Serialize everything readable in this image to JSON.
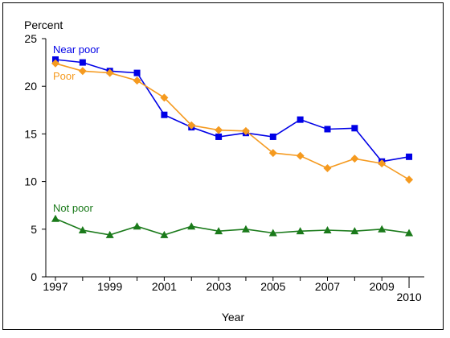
{
  "chart_data": {
    "type": "line",
    "title": "",
    "ylabel": "Percent",
    "xlabel": "Year",
    "ylim": [
      0,
      25
    ],
    "yticks": [
      0,
      5,
      10,
      15,
      20,
      25
    ],
    "x": [
      1997,
      1998,
      1999,
      2000,
      2001,
      2002,
      2003,
      2004,
      2005,
      2006,
      2007,
      2008,
      2009,
      2010
    ],
    "xtick_labels": [
      "1997",
      "1999",
      "2001",
      "2003",
      "2005",
      "2007",
      "2009",
      "2010"
    ],
    "grid": false,
    "series": [
      {
        "name": "Near poor",
        "color": "#0000e6",
        "marker": "square",
        "values": [
          22.8,
          22.5,
          21.6,
          21.4,
          17.0,
          15.7,
          14.7,
          15.1,
          14.7,
          16.5,
          15.5,
          15.6,
          12.1,
          12.6
        ]
      },
      {
        "name": "Poor",
        "color": "#f59a1f",
        "marker": "diamond",
        "values": [
          22.4,
          21.6,
          21.4,
          20.6,
          18.8,
          15.9,
          15.4,
          15.3,
          13.0,
          12.7,
          11.4,
          12.4,
          11.9,
          10.2
        ]
      },
      {
        "name": "Not poor",
        "color": "#1a7a1a",
        "marker": "triangle",
        "values": [
          6.1,
          4.9,
          4.4,
          5.3,
          4.4,
          5.3,
          4.8,
          5.0,
          4.6,
          4.8,
          4.9,
          4.8,
          5.0,
          4.6
        ]
      }
    ]
  }
}
